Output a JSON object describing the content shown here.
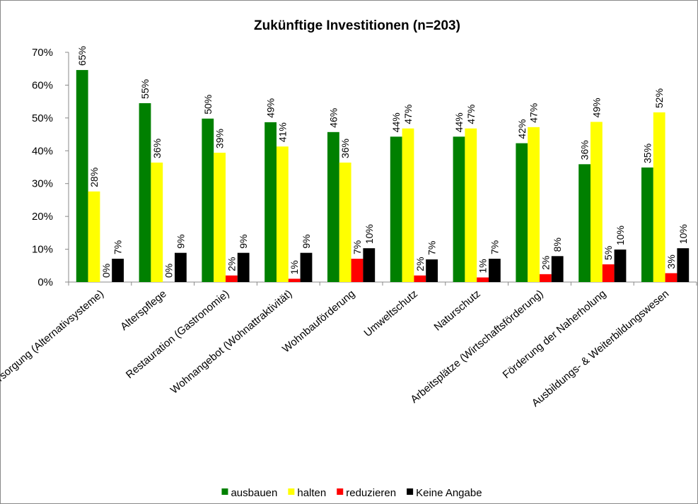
{
  "chart_data": {
    "type": "bar",
    "title": "Zukünftige Investitionen (n=203)",
    "categories": [
      "Energieversorgung (Alternativsysteme)",
      "Alterspflege",
      "Restauration (Gastronomie)",
      "Wohnangebot (Wohnattraktivität)",
      "Wohnbauförderung",
      "Umweltschutz",
      "Naturschutz",
      "Arbeitsplätze (Wirtschaftsförderung)",
      "Förderung der Naherholung",
      "Ausbildungs- & Weiterbildungswesen"
    ],
    "series": [
      {
        "name": "ausbauen",
        "color": "#008000",
        "values": [
          64.6,
          54.5,
          49.8,
          48.7,
          45.7,
          44.3,
          44.3,
          42.3,
          35.9,
          34.9
        ],
        "value_labels": [
          "65%",
          "55%",
          "50%",
          "49%",
          "46%",
          "44%",
          "44%",
          "42%",
          "36%",
          "35%"
        ]
      },
      {
        "name": "halten",
        "color": "#ffff00",
        "values": [
          27.6,
          36.4,
          39.4,
          41.3,
          36.4,
          46.8,
          46.8,
          47.2,
          48.8,
          51.7
        ],
        "value_labels": [
          "28%",
          "36%",
          "39%",
          "41%",
          "36%",
          "47%",
          "47%",
          "47%",
          "49%",
          "52%"
        ]
      },
      {
        "name": "reduzieren",
        "color": "#ff0000",
        "values": [
          0,
          0,
          2.0,
          1.0,
          7.1,
          2.0,
          1.4,
          2.4,
          5.4,
          2.7
        ],
        "value_labels": [
          "0%",
          "0%",
          "2%",
          "1%",
          "7%",
          "2%",
          "1%",
          "2%",
          "5%",
          "3%"
        ]
      },
      {
        "name": "Keine Angabe",
        "color": "#000000",
        "values": [
          7.1,
          8.9,
          8.9,
          8.9,
          10.3,
          6.9,
          7.1,
          7.9,
          9.9,
          10.3
        ],
        "value_labels": [
          "7%",
          "9%",
          "9%",
          "9%",
          "10%",
          "7%",
          "7%",
          "8%",
          "10%",
          "10%"
        ]
      }
    ],
    "ylim": [
      0,
      70
    ],
    "yticks": [
      {
        "value": 0,
        "label": "0%"
      },
      {
        "value": 10,
        "label": "10%"
      },
      {
        "value": 20,
        "label": "20%"
      },
      {
        "value": 30,
        "label": "30%"
      },
      {
        "value": 40,
        "label": "40%"
      },
      {
        "value": 50,
        "label": "50%"
      },
      {
        "value": 60,
        "label": "60%"
      },
      {
        "value": 70,
        "label": "70%"
      }
    ],
    "legend": "bottom"
  }
}
